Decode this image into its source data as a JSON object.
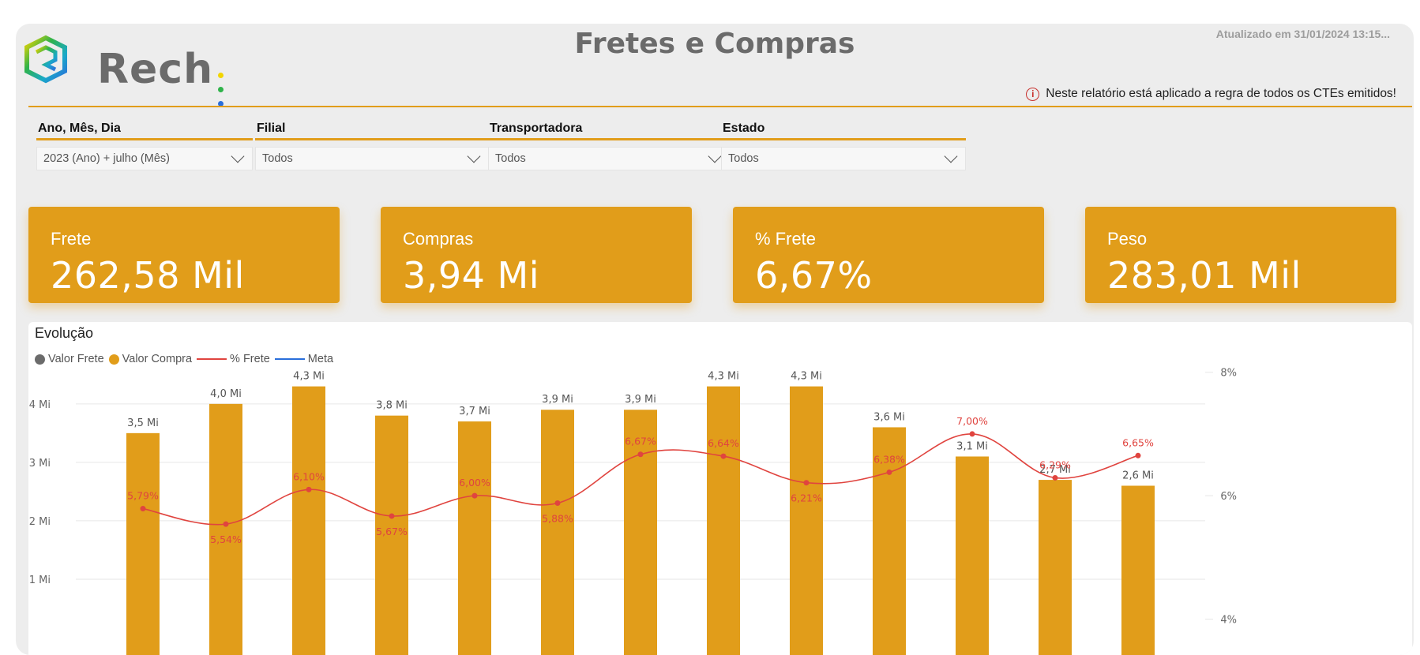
{
  "header": {
    "brand": "Rech",
    "title": "Fretes e Compras",
    "updated": "Atualizado em 31/01/2024 13:15...",
    "notice": "Neste relatório está aplicado a regra de todos os CTEs emitidos!",
    "notice_icon": "info-icon",
    "brand_dot_colors": [
      "#f2d500",
      "#2fb34a",
      "#2a6fdb"
    ]
  },
  "filters": [
    {
      "label": "Ano, Mês, Dia",
      "value": "2023 (Ano) + julho (Mês)"
    },
    {
      "label": "Filial",
      "value": "Todos"
    },
    {
      "label": "Transportadora",
      "value": "Todos"
    },
    {
      "label": "Estado",
      "value": "Todos"
    }
  ],
  "kpis": [
    {
      "label": "Frete",
      "value": "262,58 Mil"
    },
    {
      "label": "Compras",
      "value": "3,94 Mi"
    },
    {
      "label": "% Frete",
      "value": "6,67%"
    },
    {
      "label": "Peso",
      "value": "283,01 Mil"
    }
  ],
  "colors": {
    "accent": "#e19d1a",
    "frete_dot": "#6b6b6b",
    "pct_line": "#e0443f",
    "meta_line": "#2a6fdb"
  },
  "chart": {
    "title": "Evolução",
    "legend": [
      "Valor Frete",
      "Valor Compra",
      "% Frete",
      "Meta"
    ]
  },
  "chart_data": {
    "type": "bar",
    "y_left_ticks": [
      "1 Mi",
      "2 Mi",
      "3 Mi",
      "4 Mi"
    ],
    "y_left_tick_values": [
      1,
      2,
      3,
      4
    ],
    "y_right_ticks": [
      "4%",
      "6%",
      "8%"
    ],
    "y_right_tick_values": [
      4,
      6,
      8
    ],
    "ylim_left": [
      0,
      4.7
    ],
    "ylim_right": [
      3.7,
      8.15
    ],
    "series": [
      {
        "name": "Valor Compra",
        "values": [
          3.5,
          4.0,
          4.3,
          3.8,
          3.7,
          3.9,
          3.9,
          4.3,
          4.3,
          3.6,
          3.1,
          2.7,
          2.6
        ],
        "labels": [
          "3,5 Mi",
          "4,0 Mi",
          "4,3 Mi",
          "3,8 Mi",
          "3,7 Mi",
          "3,9 Mi",
          "3,9 Mi",
          "4,3 Mi",
          "4,3 Mi",
          "3,6 Mi",
          "3,1 Mi",
          "2,7 Mi",
          "2,6 Mi"
        ]
      },
      {
        "name": "% Frete",
        "values": [
          5.79,
          5.54,
          6.1,
          5.67,
          6.0,
          5.88,
          6.67,
          6.64,
          6.21,
          6.38,
          7.0,
          6.29,
          6.65
        ],
        "labels": [
          "5,79%",
          "5,54%",
          "6,10%",
          "5,67%",
          "6,00%",
          "5,88%",
          "6,67%",
          "6,64%",
          "6,21%",
          "6,38%",
          "7,00%",
          "6,29%",
          "6,65%"
        ],
        "label_pos": [
          "above",
          "below",
          "above",
          "below",
          "above",
          "below",
          "above",
          "above",
          "below",
          "above",
          "above",
          "above",
          "above"
        ]
      }
    ]
  }
}
